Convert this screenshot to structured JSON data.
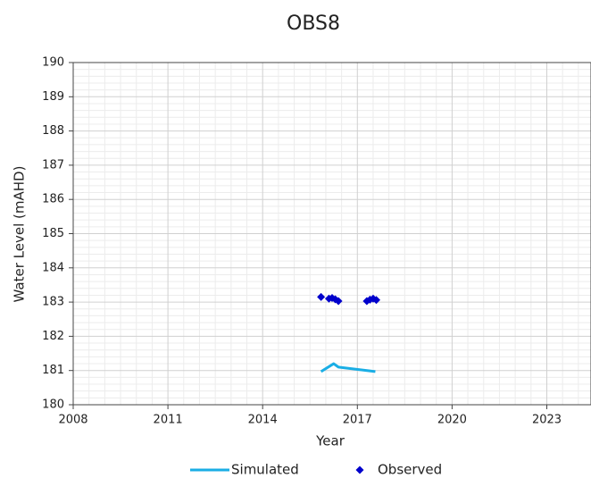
{
  "chart_data": {
    "type": "line",
    "title": "OBS8",
    "x_label": "Year",
    "y_label": "Water Level (mAHD)",
    "xlim": [
      2008,
      2024.4
    ],
    "xticks": [
      2008,
      2011,
      2014,
      2017,
      2020,
      2023
    ],
    "ylim": [
      180,
      190
    ],
    "yticks": [
      180,
      181,
      182,
      183,
      184,
      185,
      186,
      187,
      188,
      189,
      190
    ],
    "grid": true,
    "legend": "bottom",
    "series": [
      {
        "name": "Simulated",
        "color": "#1aaee5",
        "mode": "line",
        "x": [
          2015.85,
          2016.25,
          2016.4,
          2017.57
        ],
        "values": [
          180.97,
          181.2,
          181.1,
          180.97
        ]
      },
      {
        "name": "Observed",
        "color": "#0000cc",
        "mode": "markers",
        "x": [
          2015.85,
          2016.1,
          2016.2,
          2016.3,
          2016.4,
          2017.3,
          2017.4,
          2017.5,
          2017.6
        ],
        "values": [
          183.15,
          183.1,
          183.12,
          183.08,
          183.03,
          183.03,
          183.07,
          183.1,
          183.06
        ]
      }
    ]
  }
}
